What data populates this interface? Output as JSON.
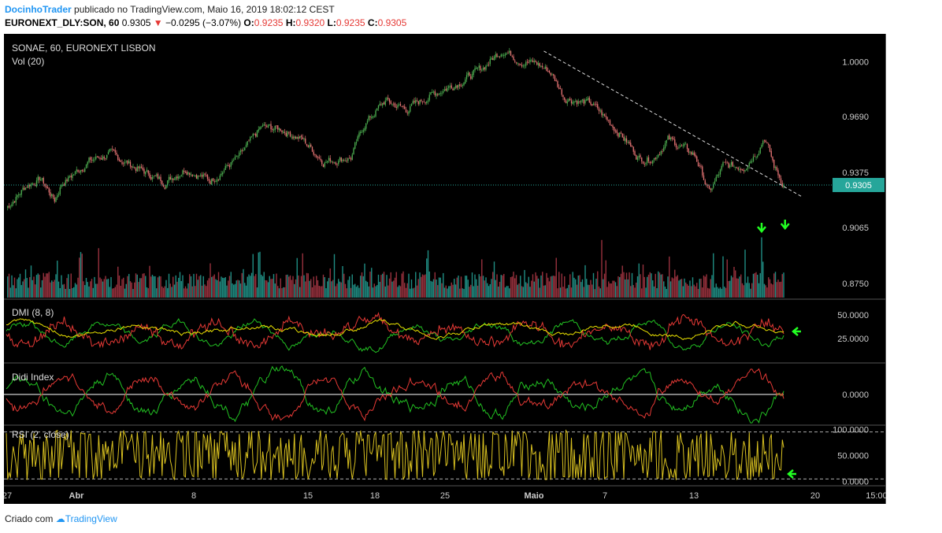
{
  "header": {
    "user": "DocinhoTrader",
    "published_text": "publicado no TradingView.com, Maio 16, 2019 18:02:12 CEST",
    "symbol": "EURONEXT_DLY:SON, 60",
    "last": "0.9305",
    "change": "−0.0295 (−3.07%)",
    "o_label": "O:",
    "o_value": "0.9235",
    "h_label": "H:",
    "h_value": "0.9320",
    "l_label": "L:",
    "l_value": "0.9235",
    "c_label": "C:",
    "c_value": "0.9305"
  },
  "footer": {
    "text": "Criado com",
    "brand": "TradingView"
  },
  "colors": {
    "background": "#000000",
    "up": "#4caf50",
    "down": "#e57373",
    "vol_up": "#26a69a",
    "vol_down": "#b23a48",
    "dmi_plus": "#22c022",
    "dmi_minus": "#e53935",
    "adx": "#e8e000",
    "rsi": "#d8c020",
    "price_tag": "#26a69a",
    "arrow": "#22ff22"
  },
  "chart_data": [
    {
      "type": "candlestick",
      "title": "SONAE, 60, EURONEXT LISBON",
      "volume_label": "Vol (20)",
      "y_ticks": [
        "1.0000",
        "0.9690",
        "0.9375",
        "0.9065",
        "0.8750"
      ],
      "ylim": [
        0.867,
        1.0135
      ],
      "current_price": "0.9305",
      "x_ticks": [
        "27",
        "Abr",
        "8",
        "15",
        "18",
        "25",
        "Maio",
        "7",
        "13",
        "20",
        "15:00"
      ],
      "close_path_anchors": [
        [
          0,
          0.9175
        ],
        [
          15,
          0.9305
        ],
        [
          25,
          0.934
        ],
        [
          35,
          0.922
        ],
        [
          40,
          0.931
        ],
        [
          60,
          0.944
        ],
        [
          75,
          0.948
        ],
        [
          95,
          0.94
        ],
        [
          115,
          0.932
        ],
        [
          130,
          0.94
        ],
        [
          148,
          0.933
        ],
        [
          170,
          0.947
        ],
        [
          185,
          0.963
        ],
        [
          200,
          0.962
        ],
        [
          215,
          0.956
        ],
        [
          230,
          0.944
        ],
        [
          250,
          0.946
        ],
        [
          260,
          0.965
        ],
        [
          275,
          0.978
        ],
        [
          290,
          0.973
        ],
        [
          310,
          0.982
        ],
        [
          330,
          0.989
        ],
        [
          345,
          0.996
        ],
        [
          360,
          1.007
        ],
        [
          375,
          1.0
        ],
        [
          385,
          0.999
        ],
        [
          395,
          0.994
        ],
        [
          405,
          0.98
        ],
        [
          425,
          0.976
        ],
        [
          445,
          0.96
        ],
        [
          460,
          0.945
        ],
        [
          470,
          0.946
        ],
        [
          480,
          0.956
        ],
        [
          490,
          0.952
        ],
        [
          500,
          0.947
        ],
        [
          510,
          0.926
        ],
        [
          520,
          0.941
        ],
        [
          535,
          0.941
        ],
        [
          545,
          0.95
        ],
        [
          550,
          0.958
        ],
        [
          557,
          0.941
        ],
        [
          564,
          0.9305
        ]
      ],
      "trendline": [
        [
          390,
          1.006
        ],
        [
          577,
          0.924
        ]
      ],
      "volume": {
        "max_label_scale": 1.0,
        "spikes": [
          [
            548,
            0.85
          ],
          [
            565,
            0.88
          ]
        ]
      }
    },
    {
      "type": "line",
      "title": "DMI (8, 8)",
      "y_ticks": [
        "50.0000",
        "25.0000"
      ],
      "ylim": [
        0,
        65
      ],
      "series": [
        {
          "key": "plus",
          "color_key": "dmi_plus"
        },
        {
          "key": "minus",
          "color_key": "dmi_minus"
        },
        {
          "key": "adx",
          "color_key": "adx"
        }
      ]
    },
    {
      "type": "line",
      "title": "Didi Index",
      "y_ticks": [
        "0.0000"
      ],
      "ylim": [
        -1,
        1
      ]
    },
    {
      "type": "line",
      "title": "RSI (2, close)",
      "y_ticks": [
        "100.0000",
        "50.0000",
        "0.0000"
      ],
      "ylim": [
        -5,
        105
      ],
      "bands": [
        5,
        95
      ]
    }
  ]
}
